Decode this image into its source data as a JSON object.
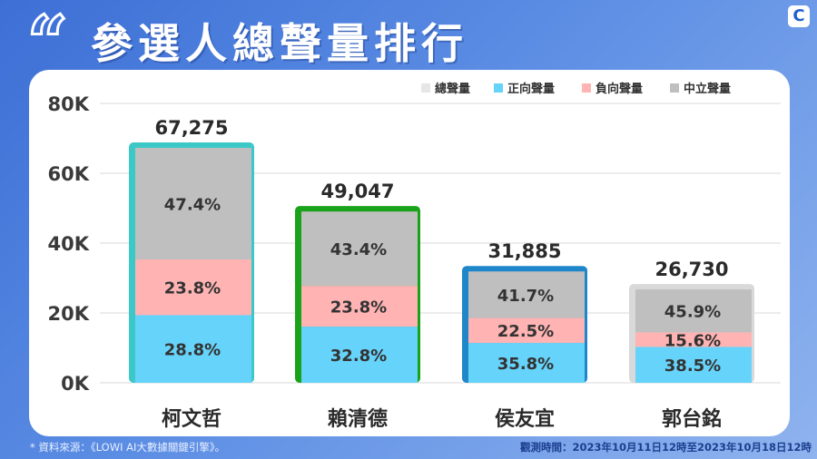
{
  "header": {
    "quote_mark": "“",
    "title": "參選人總聲量排行",
    "logo": "C"
  },
  "footer": {
    "source": "* 資料來源：《LOWI AI大數據關鍵引擎》。",
    "period": "觀測時間：2023年10月11日12時至2023年10月18日12時"
  },
  "colors": {
    "total": "#e6e6e6",
    "positive": "#66d3fa",
    "negative": "#ffb3b3",
    "neutral": "#bfbfbf",
    "outline": [
      "#3dc8c8",
      "#1aa31a",
      "#1e86c9",
      "#d9d9d9"
    ]
  },
  "chart_data": {
    "type": "bar",
    "stacked": true,
    "categories": [
      "柯文哲",
      "賴清德",
      "侯友宜",
      "郭台銘"
    ],
    "totals": [
      67275,
      49047,
      31885,
      26730
    ],
    "total_labels": [
      "67,275",
      "49,047",
      "31,885",
      "26,730"
    ],
    "series": [
      {
        "name": "正向聲量",
        "share_pct": [
          28.8,
          32.8,
          35.8,
          38.5
        ],
        "labels": [
          "28.8%",
          "32.8%",
          "35.8%",
          "38.5%"
        ]
      },
      {
        "name": "負向聲量",
        "share_pct": [
          23.8,
          23.8,
          22.5,
          15.6
        ],
        "labels": [
          "23.8%",
          "23.8%",
          "22.5%",
          "15.6%"
        ]
      },
      {
        "name": "中立聲量",
        "share_pct": [
          47.4,
          43.4,
          41.7,
          45.9
        ],
        "labels": [
          "47.4%",
          "43.4%",
          "41.7%",
          "45.9%"
        ]
      }
    ],
    "legend": [
      {
        "name": "總聲量",
        "color": "#e6e6e6"
      },
      {
        "name": "正向聲量",
        "color": "#66d3fa"
      },
      {
        "name": "負向聲量",
        "color": "#ffb3b3"
      },
      {
        "name": "中立聲量",
        "color": "#bfbfbf"
      }
    ],
    "legend_position": "top-right",
    "ylim": [
      0,
      80000
    ],
    "yticks": [
      0,
      20000,
      40000,
      60000,
      80000
    ],
    "ytick_labels": [
      "0K",
      "20K",
      "40K",
      "60K",
      "80K"
    ],
    "grid": true
  }
}
